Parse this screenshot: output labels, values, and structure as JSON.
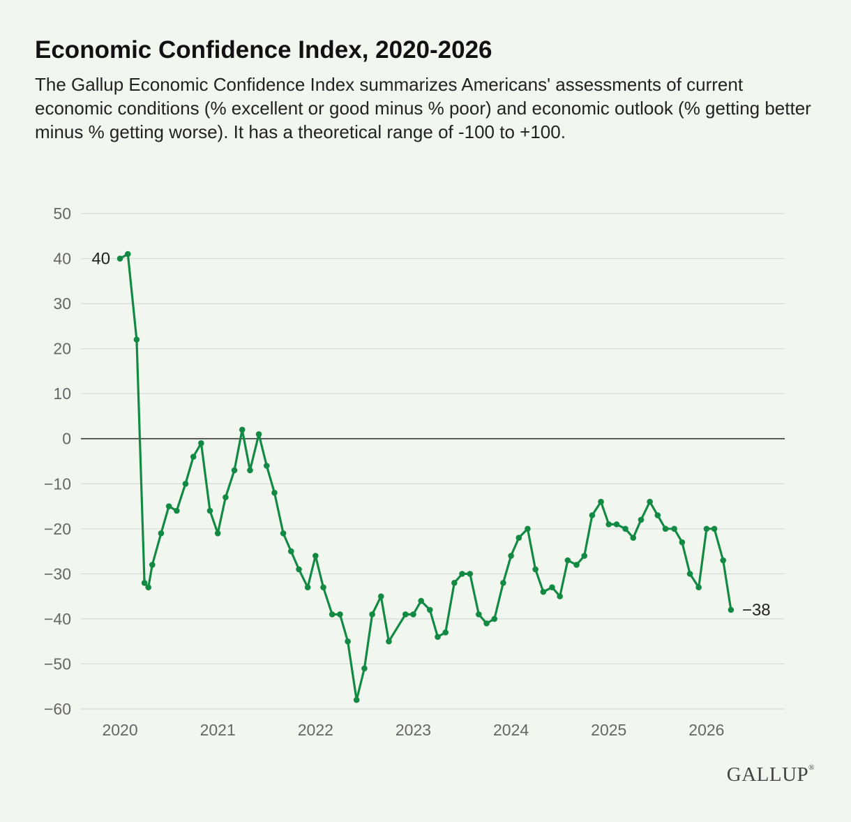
{
  "colors": {
    "background": "#f1f6ef",
    "line": "#138a44",
    "grid": "#d5dcd5",
    "zero_line": "#333333",
    "tick_text": "#666666"
  },
  "logo_text": "GALLUP",
  "chart_data": {
    "type": "line",
    "title": "Economic Confidence Index, 2020-2026",
    "subtitle": "The Gallup Economic Confidence Index summarizes Americans' assessments of current economic conditions (% excellent or good minus % poor) and economic outlook (% getting better minus % getting worse). It has a theoretical range of -100 to +100.",
    "xlabel": "",
    "ylabel": "",
    "ylim": [
      -60,
      50
    ],
    "xlim": [
      2019.6,
      2026.8
    ],
    "grid": true,
    "yticks": [
      "50",
      "40",
      "30",
      "20",
      "10",
      "0",
      "−10",
      "−20",
      "−30",
      "−40",
      "−50",
      "−60"
    ],
    "ytick_values": [
      50,
      40,
      30,
      20,
      10,
      0,
      -10,
      -20,
      -30,
      -40,
      -50,
      -60
    ],
    "xticks": [
      "2020",
      "2021",
      "2022",
      "2023",
      "2024",
      "2025",
      "2026"
    ],
    "xtick_values": [
      2020,
      2021,
      2022,
      2023,
      2024,
      2025,
      2026
    ],
    "annotations": [
      {
        "text": "40",
        "x": 2020.0,
        "y": 40,
        "side": "left"
      },
      {
        "text": "−38",
        "x": 2026.25,
        "y": -38,
        "side": "right"
      }
    ],
    "series": [
      {
        "x": [
          2020.0,
          2020.08,
          2020.17,
          2020.25,
          2020.29,
          2020.33,
          2020.42,
          2020.5,
          2020.58,
          2020.67,
          2020.75,
          2020.83,
          2020.92,
          2021.0,
          2021.08,
          2021.17,
          2021.25,
          2021.33,
          2021.42,
          2021.5,
          2021.58,
          2021.67,
          2021.75,
          2021.83,
          2021.92,
          2022.0,
          2022.08,
          2022.17,
          2022.25,
          2022.33,
          2022.42,
          2022.5,
          2022.58,
          2022.67,
          2022.75,
          2022.92,
          2023.0,
          2023.08,
          2023.17,
          2023.25,
          2023.33,
          2023.42,
          2023.5,
          2023.58,
          2023.67,
          2023.75,
          2023.83,
          2023.92,
          2024.0,
          2024.08,
          2024.17,
          2024.25,
          2024.33,
          2024.42,
          2024.5,
          2024.58,
          2024.67,
          2024.75,
          2024.83,
          2024.92,
          2025.0,
          2025.08,
          2025.17,
          2025.25,
          2025.33,
          2025.42,
          2025.5,
          2025.58,
          2025.67,
          2025.75,
          2025.83,
          2025.92,
          2026.0,
          2026.08,
          2026.17,
          2026.25
        ],
        "y": [
          40,
          41,
          22,
          -32,
          -33,
          -28,
          -21,
          -15,
          -16,
          -10,
          -4,
          -1,
          -16,
          -21,
          -13,
          -7,
          2,
          -7,
          1,
          -6,
          -12,
          -21,
          -25,
          -29,
          -33,
          -26,
          -33,
          -39,
          -39,
          -45,
          -58,
          -51,
          -39,
          -35,
          -45,
          -39,
          -39,
          -36,
          -38,
          -44,
          -43,
          -32,
          -30,
          -30,
          -39,
          -41,
          -40,
          -32,
          -26,
          -22,
          -20,
          -29,
          -34,
          -33,
          -35,
          -27,
          -28,
          -26,
          -17,
          -14,
          -19,
          -19,
          -20,
          -22,
          -18,
          -14,
          -17,
          -20,
          -20,
          -23,
          -30,
          -33,
          -20,
          -20,
          -27,
          -38
        ]
      }
    ]
  }
}
